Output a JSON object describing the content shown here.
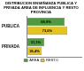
{
  "chart_data": {
    "type": "bar",
    "orientation": "horizontal",
    "title": "DISTRIBUCION ENSEÑANZA PUBLICA Y PRIVADA AREA DE INFLUENCIA Y RESTO PROVINCIA",
    "categories": [
      "PUBLICA",
      "PRIVADA"
    ],
    "series": [
      {
        "name": "AREA",
        "color": "#4f9a3c",
        "values": [
          68.9,
          31.1
        ],
        "value_labels": [
          "68,9%",
          "31,1%"
        ]
      },
      {
        "name": "RESTO",
        "color": "#e6c21e",
        "values": [
          73.6,
          26.4
        ],
        "value_labels": [
          "73,6%",
          "26,4%"
        ]
      }
    ],
    "xlim": [
      0,
      100
    ],
    "tick_labels": "y",
    "grid": false,
    "legend": "bottom",
    "data_labels": true
  }
}
